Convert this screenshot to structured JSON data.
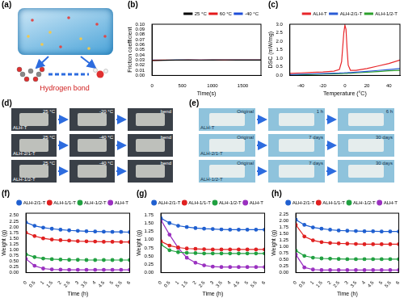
{
  "figure_panels": [
    {
      "label": "(a)",
      "caption": "Hydrogen bond"
    },
    {
      "label": "(d)",
      "rows": [
        {
          "sample": "ALH-T",
          "steps": [
            "25 °C",
            "-20 °C",
            "bend"
          ]
        },
        {
          "sample": "ALH-2/1-T",
          "steps": [
            "25 °C",
            "-40 °C",
            "bend"
          ]
        },
        {
          "sample": "ALH-1/2-T",
          "steps": [
            "25 °C",
            "-40 °C",
            "bend"
          ]
        }
      ]
    },
    {
      "label": "(e)",
      "rows": [
        {
          "sample": "ALH-T",
          "steps": [
            "Original",
            "1 h",
            "6 h"
          ]
        },
        {
          "sample": "ALH-2/1-T",
          "steps": [
            "Original",
            "7 days",
            "30 days"
          ]
        },
        {
          "sample": "ALH-1/2-T",
          "steps": [
            "Original",
            "7 days",
            "30 days"
          ]
        }
      ]
    }
  ],
  "chart_data": [
    {
      "type": "line",
      "title": "(b)",
      "x_label": "Time(s)",
      "y_label": "Friction coefficient",
      "x": [
        0,
        200,
        400,
        600,
        800,
        1000,
        1200,
        1400,
        1600,
        1800
      ],
      "series": [
        {
          "name": "25 °C",
          "color": "#000000",
          "values": [
            0.029,
            0.0295,
            0.03,
            0.03,
            0.0298,
            0.03,
            0.0302,
            0.03,
            0.0301,
            0.03
          ]
        },
        {
          "name": "60 °C",
          "color": "#e41a1c",
          "values": [
            0.0295,
            0.03,
            0.0298,
            0.03,
            0.0301,
            0.0299,
            0.03,
            0.0302,
            0.03,
            0.03
          ]
        },
        {
          "name": "-40 °C",
          "color": "#1f4fd8",
          "values": [
            0.03,
            0.0298,
            0.0301,
            0.0299,
            0.03,
            0.0302,
            0.03,
            0.0299,
            0.03,
            0.0301
          ]
        }
      ],
      "xlim": [
        0,
        1800
      ],
      "xticks": [
        0,
        500,
        1000,
        1500
      ],
      "ylim": [
        0,
        0.1
      ],
      "yticks": [
        {
          "value": 0,
          "label": "0.00"
        },
        0.01,
        0.02,
        0.03,
        0.04,
        0.05,
        0.06,
        0.07,
        0.08,
        0.09,
        {
          "value": 0.1,
          "label": "0.10"
        }
      ],
      "legend": "top right",
      "grid": false,
      "marker": "none",
      "line_style": "solid"
    },
    {
      "type": "line",
      "title": "(c)",
      "x_label": "Temperature (°C)",
      "y_label": "DSC (mW/mg)",
      "x": [
        -50,
        -40,
        -30,
        -20,
        -10,
        -5,
        -3,
        -1,
        0,
        1,
        2,
        3,
        5,
        10,
        20,
        30,
        40,
        50
      ],
      "series": [
        {
          "name": "ALH-T",
          "color": "#e8262a",
          "values": [
            0.12,
            0.15,
            0.18,
            0.2,
            0.25,
            0.35,
            0.8,
            2.5,
            2.95,
            2.7,
            1.5,
            0.6,
            0.3,
            0.3,
            0.4,
            0.55,
            0.7,
            0.9
          ]
        },
        {
          "name": "ALH-2/1-T",
          "color": "#2b5cd6",
          "values": [
            0.05,
            0.07,
            0.09,
            0.11,
            0.13,
            0.14,
            0.15,
            0.15,
            0.16,
            0.16,
            0.16,
            0.17,
            0.17,
            0.19,
            0.24,
            0.29,
            0.34,
            0.4
          ]
        },
        {
          "name": "ALH-1/2-T",
          "color": "#2ca02c",
          "values": [
            0.03,
            0.04,
            0.06,
            0.08,
            0.1,
            0.11,
            0.11,
            0.12,
            0.12,
            0.12,
            0.12,
            0.13,
            0.13,
            0.15,
            0.19,
            0.23,
            0.27,
            0.3
          ]
        }
      ],
      "xlim": [
        -50,
        50
      ],
      "xticks": [
        -40,
        -20,
        0,
        20,
        40
      ],
      "ylim": [
        0,
        3
      ],
      "yticks": [
        {
          "value": 0,
          "label": "0.0"
        },
        0.5,
        {
          "value": 1,
          "label": "1.0"
        },
        1.5,
        {
          "value": 2,
          "label": "2.0"
        },
        2.5,
        {
          "value": 3,
          "label": "3.0"
        }
      ],
      "legend": "top right",
      "grid": false,
      "marker": "none",
      "line_style": "solid"
    },
    {
      "type": "line",
      "title": "(f)",
      "x_label": "Time (h)",
      "y_label": "Weight (g)",
      "x": [
        0,
        0.5,
        1,
        1.5,
        2,
        2.5,
        3,
        3.5,
        4,
        4.5,
        5,
        5.5,
        6
      ],
      "series": [
        {
          "name": "ALH-2/1-T",
          "color": "#1f5fd0",
          "values": [
            2.2,
            2.05,
            1.97,
            1.92,
            1.88,
            1.85,
            1.83,
            1.81,
            1.8,
            1.79,
            1.78,
            1.78,
            1.77
          ]
        },
        {
          "name": "ALH-1/1-T",
          "color": "#e02020",
          "values": [
            1.75,
            1.6,
            1.5,
            1.45,
            1.42,
            1.4,
            1.38,
            1.37,
            1.36,
            1.35,
            1.35,
            1.34,
            1.34
          ]
        },
        {
          "name": "ALH-1/2-T",
          "color": "#20a040",
          "values": [
            0.8,
            0.68,
            0.62,
            0.59,
            0.57,
            0.56,
            0.56,
            0.55,
            0.55,
            0.55,
            0.55,
            0.55,
            0.55
          ]
        },
        {
          "name": "ALH-T",
          "color": "#9a30c0",
          "values": [
            0.6,
            0.3,
            0.18,
            0.14,
            0.13,
            0.12,
            0.12,
            0.12,
            0.12,
            0.12,
            0.12,
            0.12,
            0.12
          ]
        }
      ],
      "xlim": [
        0,
        6
      ],
      "xticks": [
        0,
        0.5,
        1,
        1.5,
        2,
        2.5,
        3,
        3.5,
        4,
        4.5,
        5,
        5.5,
        6
      ],
      "ylim": [
        0,
        2.6
      ],
      "yticks": [
        {
          "value": 0,
          "label": "0.00"
        },
        0.25,
        {
          "value": 0.5,
          "label": "0.50"
        },
        0.75,
        {
          "value": 1,
          "label": "1.00"
        },
        1.25,
        {
          "value": 1.5,
          "label": "1.50"
        },
        1.75,
        {
          "value": 2,
          "label": "2.00"
        },
        2.25,
        {
          "value": 2.5,
          "label": "2.50"
        }
      ],
      "legend": "top right",
      "grid": false,
      "marker": "circle",
      "line_style": "solid"
    },
    {
      "type": "line",
      "title": "(g)",
      "x_label": "Time (h)",
      "y_label": "Weight (g)",
      "x": [
        0,
        0.5,
        1,
        1.5,
        2,
        2.5,
        3,
        3.5,
        4,
        4.5,
        5,
        5.5,
        6
      ],
      "series": [
        {
          "name": "ALH-2/1-T",
          "color": "#1f5fd0",
          "values": [
            1.65,
            1.5,
            1.42,
            1.38,
            1.35,
            1.33,
            1.32,
            1.31,
            1.3,
            1.3,
            1.3,
            1.3,
            1.3
          ]
        },
        {
          "name": "ALH-1/1-T",
          "color": "#e02020",
          "values": [
            0.95,
            0.82,
            0.76,
            0.73,
            0.72,
            0.71,
            0.7,
            0.7,
            0.7,
            0.7,
            0.7,
            0.7,
            0.7
          ]
        },
        {
          "name": "ALH-1/2-T",
          "color": "#20a040",
          "values": [
            0.85,
            0.68,
            0.62,
            0.6,
            0.59,
            0.58,
            0.58,
            0.58,
            0.58,
            0.58,
            0.58,
            0.58,
            0.58
          ]
        },
        {
          "name": "ALH-T",
          "color": "#9a30c0",
          "values": [
            1.6,
            1.15,
            0.75,
            0.45,
            0.3,
            0.22,
            0.18,
            0.17,
            0.17,
            0.17,
            0.17,
            0.17,
            0.17
          ]
        }
      ],
      "xlim": [
        0,
        6
      ],
      "xticks": [
        0,
        0.5,
        1,
        1.5,
        2,
        2.5,
        3,
        3.5,
        4,
        4.5,
        5,
        5.5,
        6
      ],
      "ylim": [
        0,
        1.8
      ],
      "yticks": [
        {
          "value": 0,
          "label": "0.00"
        },
        0.25,
        {
          "value": 0.5,
          "label": "0.50"
        },
        0.75,
        {
          "value": 1,
          "label": "1.00"
        },
        1.25,
        {
          "value": 1.5,
          "label": "1.50"
        },
        1.75
      ],
      "legend": "top right",
      "grid": false,
      "marker": "circle",
      "line_style": "solid"
    },
    {
      "type": "line",
      "title": "(h)",
      "x_label": "Time (h)",
      "y_label": "Weight (g)",
      "x": [
        0,
        0.5,
        1,
        1.5,
        2,
        2.5,
        3,
        3.5,
        4,
        4.5,
        5,
        5.5,
        6
      ],
      "series": [
        {
          "name": "ALH-2/1-T",
          "color": "#1f5fd0",
          "values": [
            2.05,
            1.85,
            1.75,
            1.7,
            1.66,
            1.63,
            1.62,
            1.61,
            1.6,
            1.6,
            1.59,
            1.59,
            1.59
          ]
        },
        {
          "name": "ALH-1/1-T",
          "color": "#e02020",
          "values": [
            1.85,
            1.4,
            1.25,
            1.18,
            1.15,
            1.13,
            1.12,
            1.11,
            1.1,
            1.1,
            1.1,
            1.1,
            1.1
          ]
        },
        {
          "name": "ALH-1/2-T",
          "color": "#20a040",
          "values": [
            0.85,
            0.65,
            0.58,
            0.55,
            0.54,
            0.53,
            0.52,
            0.52,
            0.52,
            0.52,
            0.52,
            0.52,
            0.52
          ]
        },
        {
          "name": "ALH-T",
          "color": "#9a30c0",
          "values": [
            0.7,
            0.2,
            0.12,
            0.1,
            0.1,
            0.1,
            0.1,
            0.1,
            0.1,
            0.1,
            0.1,
            0.1,
            0.1
          ]
        }
      ],
      "xlim": [
        0,
        6
      ],
      "xticks": [
        0,
        0.5,
        1,
        1.5,
        2,
        2.5,
        3,
        3.5,
        4,
        4.5,
        5,
        5.5,
        6
      ],
      "ylim": [
        0,
        2.3
      ],
      "yticks": [
        {
          "value": 0,
          "label": "0.00"
        },
        0.25,
        {
          "value": 0.5,
          "label": "0.50"
        },
        0.75,
        {
          "value": 1,
          "label": "1.00"
        },
        1.25,
        {
          "value": 1.5,
          "label": "1.50"
        },
        1.75,
        {
          "value": 2,
          "label": "2.00"
        },
        2.25
      ],
      "legend": "top right",
      "grid": false,
      "marker": "circle",
      "line_style": "solid"
    }
  ]
}
